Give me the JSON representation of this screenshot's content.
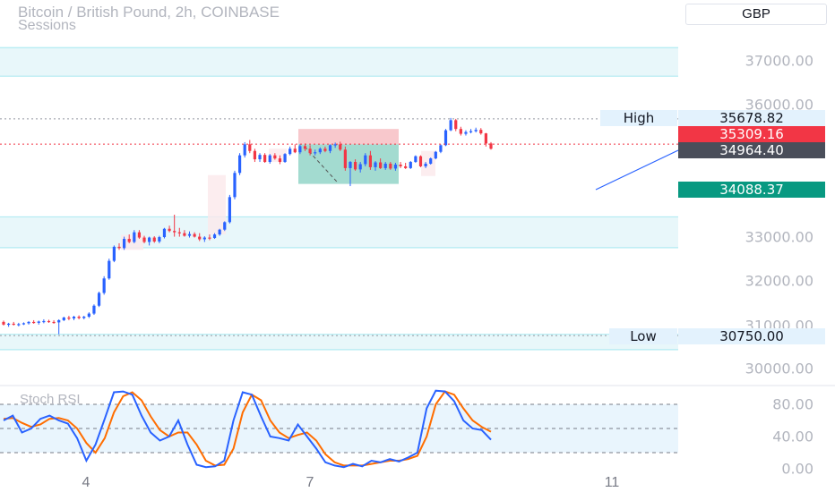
{
  "header": {
    "title": "Bitcoin / British Pound, 2h, COINBASE",
    "subtitle": "Sessions",
    "currency": "GBP"
  },
  "price_axis": [
    "37000.00",
    "36000.00",
    "33000.00",
    "32000.00",
    "31000.00",
    "30000.00"
  ],
  "tags": {
    "high_label": "High",
    "high_value": "35678.82",
    "last_price": "35309.16",
    "crosshair_price": "34964.40",
    "target_price": "34088.37",
    "low_label": "Low",
    "low_value": "30750.00"
  },
  "oscillator": {
    "label": "Stoch RSI",
    "axis": [
      "80.00",
      "40.00",
      "0.00"
    ]
  },
  "time_axis": [
    "4",
    "7",
    "11"
  ],
  "colors": {
    "up": "#2962ff",
    "down": "#f23645",
    "zone": "#b2ebf2",
    "k_line": "#2962ff",
    "d_line": "#ff6d00",
    "target": "#089981"
  },
  "chart_data": {
    "type": "candlestick",
    "title": "Bitcoin / British Pound, 2h, COINBASE",
    "ylim": [
      29700,
      37300
    ],
    "x_ticks": [
      "4",
      "7",
      "11"
    ],
    "candles": [
      [
        31060,
        31090,
        30980,
        31000
      ],
      [
        31000,
        31040,
        30950,
        31020
      ],
      [
        31020,
        31060,
        30980,
        31000
      ],
      [
        31000,
        31040,
        30960,
        31010
      ],
      [
        31010,
        31050,
        30990,
        31030
      ],
      [
        31030,
        31080,
        31000,
        31060
      ],
      [
        31060,
        31100,
        31020,
        31040
      ],
      [
        31040,
        31090,
        31000,
        31070
      ],
      [
        31070,
        31120,
        31030,
        31080
      ],
      [
        31080,
        31110,
        31040,
        31060
      ],
      [
        31060,
        31100,
        31020,
        31050
      ],
      [
        31050,
        31120,
        30780,
        31100
      ],
      [
        31100,
        31180,
        31080,
        31160
      ],
      [
        31160,
        31200,
        31100,
        31140
      ],
      [
        31140,
        31200,
        31100,
        31180
      ],
      [
        31180,
        31210,
        31120,
        31150
      ],
      [
        31150,
        31200,
        31120,
        31180
      ],
      [
        31180,
        31280,
        31150,
        31250
      ],
      [
        31250,
        31460,
        31220,
        31430
      ],
      [
        31430,
        31750,
        31400,
        31720
      ],
      [
        31720,
        32100,
        31680,
        32050
      ],
      [
        32050,
        32500,
        32020,
        32450
      ],
      [
        32450,
        32800,
        32420,
        32770
      ],
      [
        32770,
        32850,
        32700,
        32740
      ],
      [
        32740,
        33000,
        32700,
        32950
      ],
      [
        32950,
        33050,
        32850,
        32880
      ],
      [
        32880,
        33150,
        32850,
        33100
      ],
      [
        33100,
        33150,
        32950,
        32980
      ],
      [
        32980,
        33020,
        32850,
        32880
      ],
      [
        32880,
        33000,
        32800,
        32980
      ],
      [
        32980,
        33010,
        32860,
        32890
      ],
      [
        32890,
        33020,
        32850,
        32990
      ],
      [
        32990,
        33200,
        32960,
        33180
      ],
      [
        33180,
        33250,
        33100,
        33130
      ],
      [
        33130,
        33500,
        33000,
        33100
      ],
      [
        33100,
        33200,
        33000,
        33080
      ],
      [
        33080,
        33150,
        33000,
        33020
      ],
      [
        33020,
        33120,
        32980,
        33060
      ],
      [
        33060,
        33100,
        32980,
        33000
      ],
      [
        33000,
        33080,
        32900,
        32940
      ],
      [
        32940,
        33010,
        32880,
        32980
      ],
      [
        32980,
        33050,
        32920,
        32970
      ],
      [
        32970,
        33080,
        32950,
        33050
      ],
      [
        33050,
        33180,
        33020,
        33160
      ],
      [
        33160,
        33350,
        33130,
        33330
      ],
      [
        33330,
        33950,
        33300,
        33900
      ],
      [
        33900,
        34500,
        33850,
        34450
      ],
      [
        34450,
        34900,
        34400,
        34850
      ],
      [
        34850,
        35150,
        34800,
        35100
      ],
      [
        35100,
        35200,
        34900,
        34950
      ],
      [
        34950,
        35000,
        34700,
        34760
      ],
      [
        34760,
        34900,
        34700,
        34860
      ],
      [
        34860,
        34900,
        34680,
        34700
      ],
      [
        34700,
        34880,
        34660,
        34850
      ],
      [
        34850,
        34900,
        34750,
        34780
      ],
      [
        34780,
        34850,
        34650,
        34700
      ],
      [
        34700,
        34900,
        34680,
        34880
      ],
      [
        34880,
        35050,
        34850,
        35000
      ],
      [
        35000,
        35100,
        34900,
        34920
      ],
      [
        34920,
        35100,
        34880,
        35060
      ],
      [
        35060,
        35120,
        34950,
        35000
      ],
      [
        35000,
        35080,
        34850,
        34900
      ],
      [
        34900,
        34980,
        34850,
        34920
      ],
      [
        34920,
        35030,
        34880,
        35000
      ],
      [
        35000,
        35050,
        34920,
        34950
      ],
      [
        34950,
        35100,
        34900,
        35080
      ],
      [
        35080,
        35140,
        35020,
        35100
      ],
      [
        35100,
        35160,
        34950,
        34980
      ],
      [
        34980,
        35050,
        34500,
        34560
      ],
      [
        34560,
        34720,
        34150,
        34700
      ],
      [
        34700,
        34760,
        34500,
        34530
      ],
      [
        34530,
        34700,
        34460,
        34650
      ],
      [
        34650,
        34900,
        34600,
        34850
      ],
      [
        34850,
        34950,
        34520,
        34580
      ],
      [
        34580,
        34720,
        34500,
        34690
      ],
      [
        34690,
        34780,
        34540,
        34560
      ],
      [
        34560,
        34700,
        34520,
        34660
      ],
      [
        34660,
        34700,
        34520,
        34550
      ],
      [
        34550,
        34680,
        34500,
        34640
      ],
      [
        34640,
        34700,
        34560,
        34600
      ],
      [
        34600,
        34680,
        34540,
        34560
      ],
      [
        34560,
        34720,
        34540,
        34700
      ],
      [
        34700,
        34850,
        34680,
        34830
      ],
      [
        34830,
        34850,
        34580,
        34600
      ],
      [
        34600,
        34700,
        34560,
        34660
      ],
      [
        34660,
        34800,
        34640,
        34780
      ],
      [
        34780,
        34950,
        34760,
        34930
      ],
      [
        34930,
        35100,
        34900,
        35080
      ],
      [
        35080,
        35450,
        35060,
        35420
      ],
      [
        35420,
        35700,
        35400,
        35650
      ],
      [
        35650,
        35680,
        35400,
        35450
      ],
      [
        35450,
        35500,
        35300,
        35340
      ],
      [
        35340,
        35420,
        35300,
        35380
      ],
      [
        35380,
        35450,
        35350,
        35400
      ],
      [
        35400,
        35480,
        35370,
        35430
      ],
      [
        35430,
        35470,
        35320,
        35350
      ],
      [
        35350,
        35360,
        35050,
        35120
      ],
      [
        35120,
        35150,
        34980,
        35000
      ]
    ],
    "stoch_k": [
      60,
      66,
      45,
      50,
      62,
      66,
      60,
      56,
      38,
      10,
      30,
      62,
      95,
      96,
      92,
      66,
      45,
      35,
      40,
      60,
      30,
      5,
      2,
      3,
      10,
      60,
      95,
      92,
      65,
      40,
      38,
      35,
      55,
      40,
      25,
      8,
      4,
      2,
      6,
      3,
      10,
      8,
      12,
      9,
      14,
      20,
      75,
      97,
      96,
      84,
      60,
      50,
      48,
      36
    ],
    "stoch_d": [
      62,
      63,
      57,
      52,
      55,
      62,
      63,
      60,
      50,
      32,
      20,
      38,
      70,
      90,
      95,
      85,
      65,
      48,
      40,
      45,
      45,
      30,
      10,
      4,
      5,
      25,
      70,
      92,
      85,
      60,
      45,
      38,
      42,
      45,
      35,
      18,
      8,
      4,
      4,
      4,
      6,
      8,
      10,
      10,
      12,
      16,
      40,
      80,
      96,
      92,
      75,
      60,
      52,
      46
    ]
  }
}
